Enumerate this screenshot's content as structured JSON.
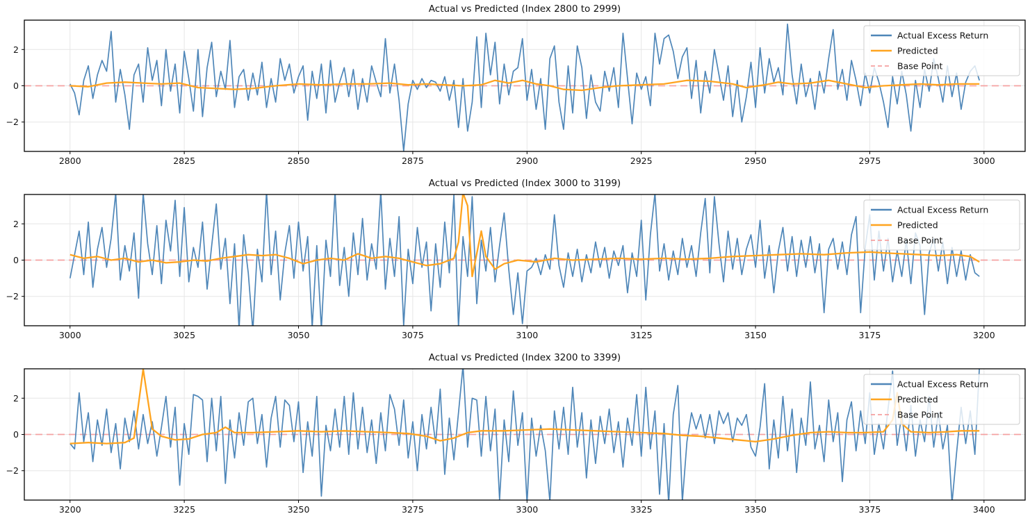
{
  "figure": {
    "background": "#ffffff"
  },
  "colors": {
    "actual": "#4e86b8",
    "predicted": "#ffa41f",
    "base": "#f5a1a1",
    "grid": "#e6e6e6",
    "spine": "#000000",
    "text": "#111111",
    "legend_border": "#cccccc",
    "legend_bg_opacity": 0.8
  },
  "legend": {
    "items": [
      {
        "label": "Actual Excess Return",
        "style": "solid",
        "color_key": "actual"
      },
      {
        "label": "Predicted",
        "style": "solid",
        "color_key": "predicted"
      },
      {
        "label": "Base Point",
        "style": "dashed",
        "color_key": "base"
      }
    ]
  },
  "axes": {
    "ylim": [
      -3.62,
      3.62
    ],
    "y_ticks": [
      -2,
      0,
      2
    ],
    "x_margin": 10,
    "grid": true
  },
  "chart_data": [
    {
      "type": "line",
      "title": "Actual vs Predicted (Index 2800 to 2999)",
      "x_start": 2800,
      "x_end": 2999,
      "x_ticks": [
        2800,
        2825,
        2850,
        2875,
        2900,
        2925,
        2950,
        2975,
        3000
      ],
      "base_point_y": 0,
      "actual": [
        0.1,
        -0.4,
        -1.6,
        0.3,
        1.1,
        -0.7,
        0.6,
        1.4,
        0.8,
        3.0,
        -0.9,
        0.9,
        -0.5,
        -2.4,
        0.6,
        1.2,
        -0.9,
        2.1,
        0.3,
        1.4,
        -1.1,
        2.0,
        -0.3,
        1.2,
        -1.5,
        1.9,
        0.4,
        -1.4,
        2.0,
        -1.7,
        1.0,
        2.4,
        -0.6,
        0.8,
        -0.2,
        2.5,
        -1.2,
        0.5,
        0.9,
        -0.8,
        0.7,
        -0.5,
        1.3,
        -1.2,
        0.4,
        -0.9,
        1.5,
        0.3,
        1.2,
        -0.4,
        0.5,
        1.1,
        -1.9,
        0.8,
        -0.7,
        1.2,
        -1.5,
        1.4,
        -0.9,
        0.2,
        1.0,
        -0.6,
        0.9,
        -1.3,
        0.4,
        -0.9,
        1.1,
        0.2,
        -0.6,
        2.6,
        -0.4,
        1.2,
        -0.8,
        -3.6,
        -1.0,
        0.3,
        -0.2,
        0.4,
        -0.1,
        0.3,
        0.2,
        -0.3,
        0.5,
        -0.8,
        0.3,
        -2.3,
        0.4,
        -2.5,
        -0.9,
        2.7,
        -1.2,
        2.9,
        0.6,
        2.4,
        -1.0,
        1.2,
        -0.5,
        0.8,
        1.0,
        2.6,
        -0.8,
        0.9,
        -1.3,
        0.4,
        -2.4,
        1.5,
        2.2,
        -0.9,
        -2.4,
        1.1,
        -1.5,
        2.2,
        1.0,
        -1.8,
        0.6,
        -0.9,
        -1.4,
        0.8,
        -0.3,
        1.0,
        -1.2,
        2.9,
        0.4,
        -2.1,
        0.7,
        -0.2,
        0.5,
        -1.1,
        2.9,
        1.2,
        2.6,
        2.8,
        1.9,
        0.4,
        1.6,
        2.1,
        -0.7,
        1.4,
        -1.5,
        0.8,
        -0.4,
        2.0,
        0.6,
        -0.8,
        1.1,
        -1.7,
        0.3,
        -2.0,
        -0.6,
        1.3,
        -1.2,
        2.1,
        -0.4,
        1.5,
        0.2,
        1.0,
        -0.5,
        3.4,
        0.6,
        -1.0,
        1.2,
        -0.6,
        0.4,
        -1.3,
        0.8,
        -0.4,
        1.5,
        3.1,
        -0.2,
        0.9,
        -0.8,
        1.4,
        0.3,
        -1.1,
        0.7,
        -0.4,
        1.0,
        0.2,
        -0.9,
        -2.3,
        0.5,
        -1.0,
        0.8,
        -0.5,
        -2.5,
        0.3,
        -1.2,
        0.9,
        -0.3,
        1.5,
        0.4,
        -0.9,
        1.1,
        -0.6,
        0.7,
        -1.3,
        0.2,
        0.8,
        1.1,
        0.3
      ],
      "predicted_anchors": [
        [
          2800,
          0.0
        ],
        [
          2804,
          -0.05
        ],
        [
          2808,
          0.15
        ],
        [
          2812,
          0.2
        ],
        [
          2816,
          0.15
        ],
        [
          2820,
          0.1
        ],
        [
          2824,
          0.15
        ],
        [
          2828,
          -0.1
        ],
        [
          2832,
          -0.15
        ],
        [
          2836,
          -0.2
        ],
        [
          2840,
          -0.15
        ],
        [
          2845,
          0.0
        ],
        [
          2850,
          0.1
        ],
        [
          2855,
          0.05
        ],
        [
          2860,
          0.1
        ],
        [
          2865,
          0.1
        ],
        [
          2870,
          0.15
        ],
        [
          2874,
          0.05
        ],
        [
          2878,
          0.1
        ],
        [
          2882,
          0.05
        ],
        [
          2886,
          0.0
        ],
        [
          2890,
          0.05
        ],
        [
          2893,
          0.3
        ],
        [
          2896,
          0.15
        ],
        [
          2899,
          0.3
        ],
        [
          2902,
          0.1
        ],
        [
          2905,
          0.0
        ],
        [
          2908,
          -0.2
        ],
        [
          2912,
          -0.25
        ],
        [
          2916,
          -0.1
        ],
        [
          2920,
          0.0
        ],
        [
          2925,
          0.05
        ],
        [
          2930,
          0.1
        ],
        [
          2935,
          0.3
        ],
        [
          2940,
          0.25
        ],
        [
          2945,
          0.1
        ],
        [
          2948,
          -0.1
        ],
        [
          2952,
          0.05
        ],
        [
          2955,
          0.2
        ],
        [
          2958,
          0.1
        ],
        [
          2962,
          0.15
        ],
        [
          2966,
          0.3
        ],
        [
          2970,
          0.1
        ],
        [
          2974,
          -0.1
        ],
        [
          2978,
          0.0
        ],
        [
          2982,
          0.05
        ],
        [
          2986,
          0.1
        ],
        [
          2990,
          0.05
        ],
        [
          2994,
          0.1
        ],
        [
          2999,
          0.1
        ]
      ]
    },
    {
      "type": "line",
      "title": "Actual vs Predicted (Index 3000 to 3199)",
      "x_start": 3000,
      "x_end": 3199,
      "x_ticks": [
        3000,
        3025,
        3050,
        3075,
        3100,
        3125,
        3150,
        3175,
        3200
      ],
      "base_point_y": 0,
      "actual": [
        -1.0,
        0.3,
        1.6,
        -0.8,
        2.1,
        -1.5,
        0.6,
        1.8,
        -0.4,
        1.2,
        3.7,
        -1.1,
        0.8,
        -0.6,
        1.5,
        -2.1,
        3.7,
        0.9,
        -0.8,
        1.9,
        -1.3,
        2.2,
        0.5,
        3.3,
        -0.9,
        2.9,
        -1.2,
        0.7,
        -0.4,
        2.1,
        -1.6,
        0.8,
        3.1,
        -0.5,
        1.2,
        -2.4,
        0.9,
        -3.8,
        1.4,
        -0.7,
        -3.9,
        0.6,
        -1.2,
        3.8,
        -0.8,
        1.6,
        -2.2,
        0.4,
        1.9,
        -1.0,
        2.1,
        -0.6,
        1.3,
        -3.7,
        0.8,
        -3.8,
        1.1,
        -0.9,
        3.8,
        -1.4,
        0.7,
        -2.0,
        1.5,
        -0.8,
        2.3,
        -1.1,
        0.9,
        -0.5,
        3.8,
        -1.6,
        1.2,
        -0.9,
        2.4,
        -3.6,
        0.6,
        -1.3,
        1.8,
        -0.4,
        1.0,
        -2.8,
        0.9,
        -1.5,
        2.1,
        -0.7,
        3.6,
        -3.7,
        1.3,
        -0.9,
        3.5,
        -2.4,
        1.1,
        -0.6,
        1.8,
        -1.2,
        0.8,
        2.6,
        -0.5,
        -3.0,
        -0.7,
        -3.5,
        -0.6,
        -0.4,
        0.1,
        -0.8,
        0.3,
        -0.5,
        2.5,
        -0.3,
        -1.5,
        0.4,
        -0.9,
        0.6,
        -1.2,
        0.3,
        -0.7,
        1.0,
        -0.4,
        0.7,
        -1.0,
        0.5,
        -0.3,
        0.8,
        -1.8,
        0.4,
        -0.9,
        2.2,
        -2.2,
        1.4,
        3.7,
        -0.6,
        0.9,
        -1.1,
        0.5,
        -0.8,
        1.2,
        -0.4,
        0.8,
        -0.9,
        1.5,
        3.4,
        -0.7,
        3.5,
        0.9,
        -1.2,
        1.6,
        -0.5,
        1.2,
        -0.8,
        0.6,
        1.4,
        -0.4,
        2.2,
        -1.0,
        0.8,
        -1.8,
        0.5,
        1.8,
        -0.6,
        1.3,
        -0.9,
        1.1,
        -0.4,
        1.3,
        -0.7,
        0.9,
        -2.9,
        0.6,
        1.2,
        -0.5,
        1.0,
        -0.8,
        1.4,
        2.4,
        -2.9,
        0.7,
        2.5,
        -1.1,
        1.6,
        -0.6,
        1.2,
        -1.2,
        0.5,
        -0.9,
        1.1,
        -1.3,
        1.5,
        0.8,
        -3.0,
        0.4,
        1.2,
        -0.6,
        1.0,
        -1.3,
        0.7,
        -0.9,
        0.5,
        -1.1,
        0.3,
        -0.7,
        -0.9
      ],
      "predicted_anchors": [
        [
          3000,
          0.3
        ],
        [
          3003,
          0.1
        ],
        [
          3006,
          0.2
        ],
        [
          3009,
          0.0
        ],
        [
          3012,
          0.1
        ],
        [
          3015,
          -0.1
        ],
        [
          3018,
          0.0
        ],
        [
          3021,
          -0.15
        ],
        [
          3024,
          -0.1
        ],
        [
          3027,
          0.0
        ],
        [
          3030,
          -0.05
        ],
        [
          3033,
          0.1
        ],
        [
          3036,
          0.2
        ],
        [
          3039,
          0.3
        ],
        [
          3042,
          0.25
        ],
        [
          3045,
          0.3
        ],
        [
          3048,
          0.1
        ],
        [
          3051,
          -0.2
        ],
        [
          3054,
          0.0
        ],
        [
          3057,
          0.1
        ],
        [
          3060,
          0.0
        ],
        [
          3063,
          0.35
        ],
        [
          3066,
          0.1
        ],
        [
          3069,
          0.2
        ],
        [
          3072,
          0.1
        ],
        [
          3075,
          -0.1
        ],
        [
          3078,
          -0.3
        ],
        [
          3081,
          -0.2
        ],
        [
          3084,
          0.1
        ],
        [
          3085,
          1.0
        ],
        [
          3086,
          3.7
        ],
        [
          3087,
          3.0
        ],
        [
          3088,
          -0.9
        ],
        [
          3090,
          1.6
        ],
        [
          3091,
          0.2
        ],
        [
          3093,
          -0.5
        ],
        [
          3095,
          -0.2
        ],
        [
          3098,
          0.0
        ],
        [
          3102,
          -0.1
        ],
        [
          3106,
          0.1
        ],
        [
          3110,
          0.0
        ],
        [
          3115,
          0.05
        ],
        [
          3120,
          0.1
        ],
        [
          3125,
          0.05
        ],
        [
          3130,
          0.1
        ],
        [
          3135,
          0.05
        ],
        [
          3140,
          0.1
        ],
        [
          3145,
          0.2
        ],
        [
          3150,
          0.25
        ],
        [
          3155,
          0.3
        ],
        [
          3160,
          0.35
        ],
        [
          3165,
          0.3
        ],
        [
          3170,
          0.4
        ],
        [
          3175,
          0.45
        ],
        [
          3178,
          0.4
        ],
        [
          3182,
          0.35
        ],
        [
          3186,
          0.3
        ],
        [
          3190,
          0.25
        ],
        [
          3194,
          0.3
        ],
        [
          3197,
          0.2
        ],
        [
          3199,
          -0.1
        ]
      ]
    },
    {
      "type": "line",
      "title": "Actual vs Predicted (Index 3200 to 3399)",
      "x_start": 3200,
      "x_end": 3399,
      "x_ticks": [
        3200,
        3225,
        3250,
        3275,
        3300,
        3325,
        3350,
        3375,
        3400
      ],
      "base_point_y": 0,
      "actual": [
        -0.5,
        -0.8,
        2.3,
        -0.4,
        1.2,
        -1.5,
        0.8,
        -0.6,
        1.4,
        -1.0,
        0.6,
        -1.9,
        0.9,
        -0.4,
        1.3,
        -0.8,
        1.1,
        -0.5,
        0.7,
        -1.2,
        0.4,
        2.1,
        -0.7,
        1.5,
        -2.8,
        0.6,
        -1.1,
        2.2,
        2.1,
        1.9,
        -1.5,
        2.0,
        -0.9,
        2.1,
        -2.7,
        0.8,
        -1.3,
        1.2,
        -0.6,
        1.8,
        2.0,
        -0.5,
        1.1,
        -1.8,
        0.9,
        2.1,
        -0.7,
        1.9,
        1.6,
        -0.4,
        1.8,
        -2.1,
        0.7,
        -1.2,
        2.1,
        -3.4,
        0.5,
        -0.9,
        1.4,
        -0.7,
        2.1,
        -1.1,
        2.3,
        -0.8,
        1.5,
        -1.0,
        0.8,
        -1.6,
        1.2,
        -0.9,
        2.2,
        1.4,
        -0.6,
        1.9,
        -1.3,
        0.7,
        -2.0,
        1.1,
        -0.8,
        1.5,
        -0.5,
        2.5,
        -2.2,
        0.9,
        -1.4,
        1.2,
        3.8,
        -0.7,
        2.0,
        1.9,
        -1.2,
        2.1,
        -0.9,
        1.4,
        -3.6,
        0.8,
        -1.5,
        2.4,
        -0.6,
        1.2,
        -3.8,
        0.9,
        -1.2,
        0.5,
        -0.9,
        -3.7,
        1.3,
        -0.8,
        1.5,
        -1.1,
        2.6,
        -0.7,
        1.2,
        -2.4,
        0.8,
        -1.6,
        1.0,
        -0.5,
        1.4,
        -1.0,
        0.7,
        -1.8,
        0.9,
        -0.6,
        2.2,
        -1.2,
        2.6,
        -0.8,
        1.3,
        -3.3,
        0.6,
        -3.8,
        1.1,
        2.7,
        -3.7,
        -0.4,
        1.2,
        0.3,
        1.1,
        -0.2,
        1.1,
        -0.5,
        1.3,
        0.6,
        1.2,
        -0.4,
        0.9,
        0.5,
        1.1,
        -0.7,
        -1.2,
        0.4,
        2.8,
        -1.9,
        0.8,
        -1.3,
        2.1,
        -0.9,
        1.4,
        -2.1,
        0.9,
        -0.6,
        2.9,
        -0.8,
        0.5,
        -1.5,
        1.9,
        -0.4,
        1.2,
        -2.6,
        0.8,
        1.8,
        -0.9,
        1.3,
        -0.5,
        2.3,
        -1.1,
        0.6,
        -0.8,
        1.4,
        3.5,
        -0.6,
        1.1,
        -0.9,
        1.6,
        -1.2,
        0.8,
        -0.4,
        2.1,
        -0.7,
        1.2,
        -0.8,
        0.5,
        -3.8,
        -1.0,
        1.5,
        -0.5,
        1.3,
        -1.1,
        3.7
      ],
      "predicted_anchors": [
        [
          3200,
          -0.5
        ],
        [
          3204,
          -0.45
        ],
        [
          3208,
          -0.5
        ],
        [
          3212,
          -0.45
        ],
        [
          3214,
          -0.2
        ],
        [
          3216,
          3.6
        ],
        [
          3218,
          0.3
        ],
        [
          3220,
          -0.1
        ],
        [
          3223,
          -0.3
        ],
        [
          3226,
          -0.25
        ],
        [
          3229,
          0.0
        ],
        [
          3232,
          0.1
        ],
        [
          3234,
          0.4
        ],
        [
          3236,
          0.1
        ],
        [
          3240,
          0.1
        ],
        [
          3245,
          0.15
        ],
        [
          3250,
          0.2
        ],
        [
          3255,
          0.15
        ],
        [
          3260,
          0.2
        ],
        [
          3265,
          0.15
        ],
        [
          3270,
          0.1
        ],
        [
          3274,
          0.05
        ],
        [
          3278,
          -0.1
        ],
        [
          3281,
          -0.35
        ],
        [
          3284,
          -0.2
        ],
        [
          3287,
          0.1
        ],
        [
          3290,
          0.2
        ],
        [
          3295,
          0.2
        ],
        [
          3300,
          0.25
        ],
        [
          3305,
          0.3
        ],
        [
          3310,
          0.25
        ],
        [
          3315,
          0.2
        ],
        [
          3320,
          0.15
        ],
        [
          3325,
          0.1
        ],
        [
          3330,
          0.05
        ],
        [
          3334,
          -0.05
        ],
        [
          3338,
          -0.1
        ],
        [
          3342,
          -0.2
        ],
        [
          3346,
          -0.3
        ],
        [
          3350,
          -0.4
        ],
        [
          3354,
          -0.25
        ],
        [
          3358,
          -0.05
        ],
        [
          3362,
          0.1
        ],
        [
          3366,
          0.15
        ],
        [
          3370,
          0.1
        ],
        [
          3374,
          0.1
        ],
        [
          3378,
          0.15
        ],
        [
          3380,
          0.8
        ],
        [
          3381,
          2.3
        ],
        [
          3382,
          0.6
        ],
        [
          3384,
          0.15
        ],
        [
          3388,
          0.1
        ],
        [
          3392,
          0.15
        ],
        [
          3395,
          0.2
        ],
        [
          3399,
          0.2
        ]
      ]
    }
  ]
}
